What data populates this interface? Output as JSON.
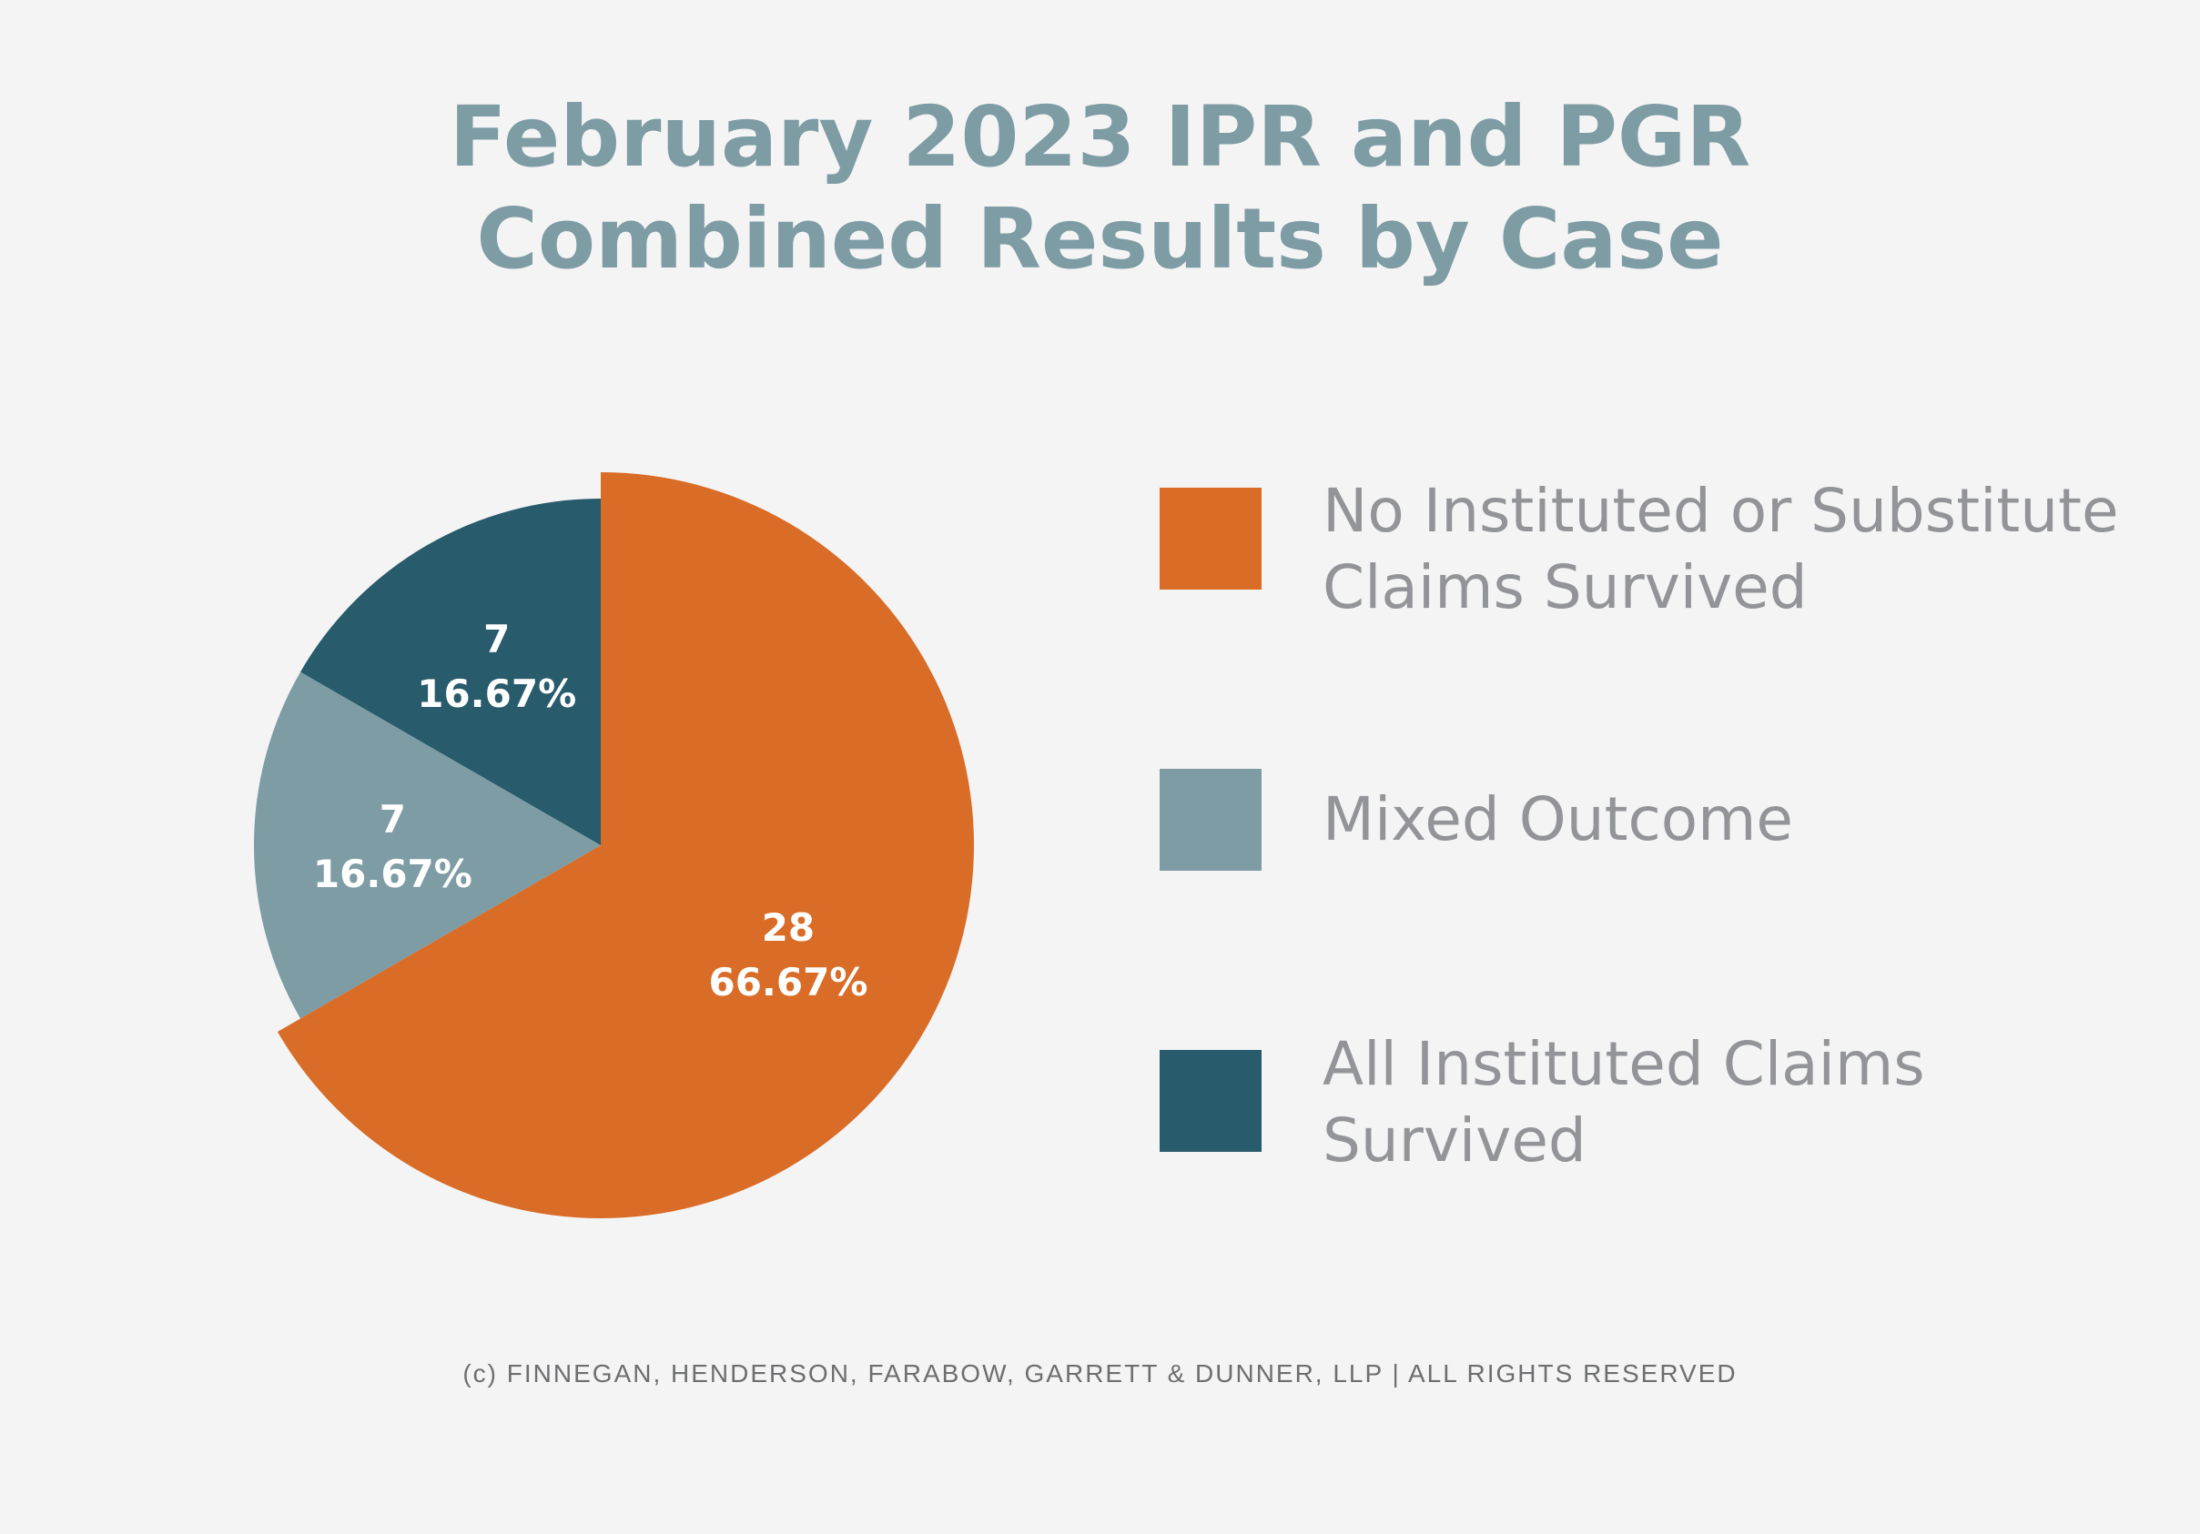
{
  "chart_data": {
    "type": "pie",
    "title_lines": [
      "February 2023 IPR and PGR",
      "Combined Results by Case"
    ],
    "slices": [
      {
        "name": "No Instituted or Substitute Claims Survived",
        "value": 28,
        "percent_label": "66.67%",
        "color": "#d96c27"
      },
      {
        "name": "Mixed Outcome",
        "value": 7,
        "percent_label": "16.67%",
        "color": "#7e9ca4"
      },
      {
        "name": "All Instituted Claims Survived",
        "value": 7,
        "percent_label": "16.67%",
        "color": "#285b6b"
      }
    ],
    "legend_position": "right",
    "exploded_slice": "No Instituted or Substitute Claims Survived"
  },
  "footer": "(c) FINNEGAN, HENDERSON, FARABOW, GARRETT & DUNNER, LLP | ALL RIGHTS RESERVED"
}
